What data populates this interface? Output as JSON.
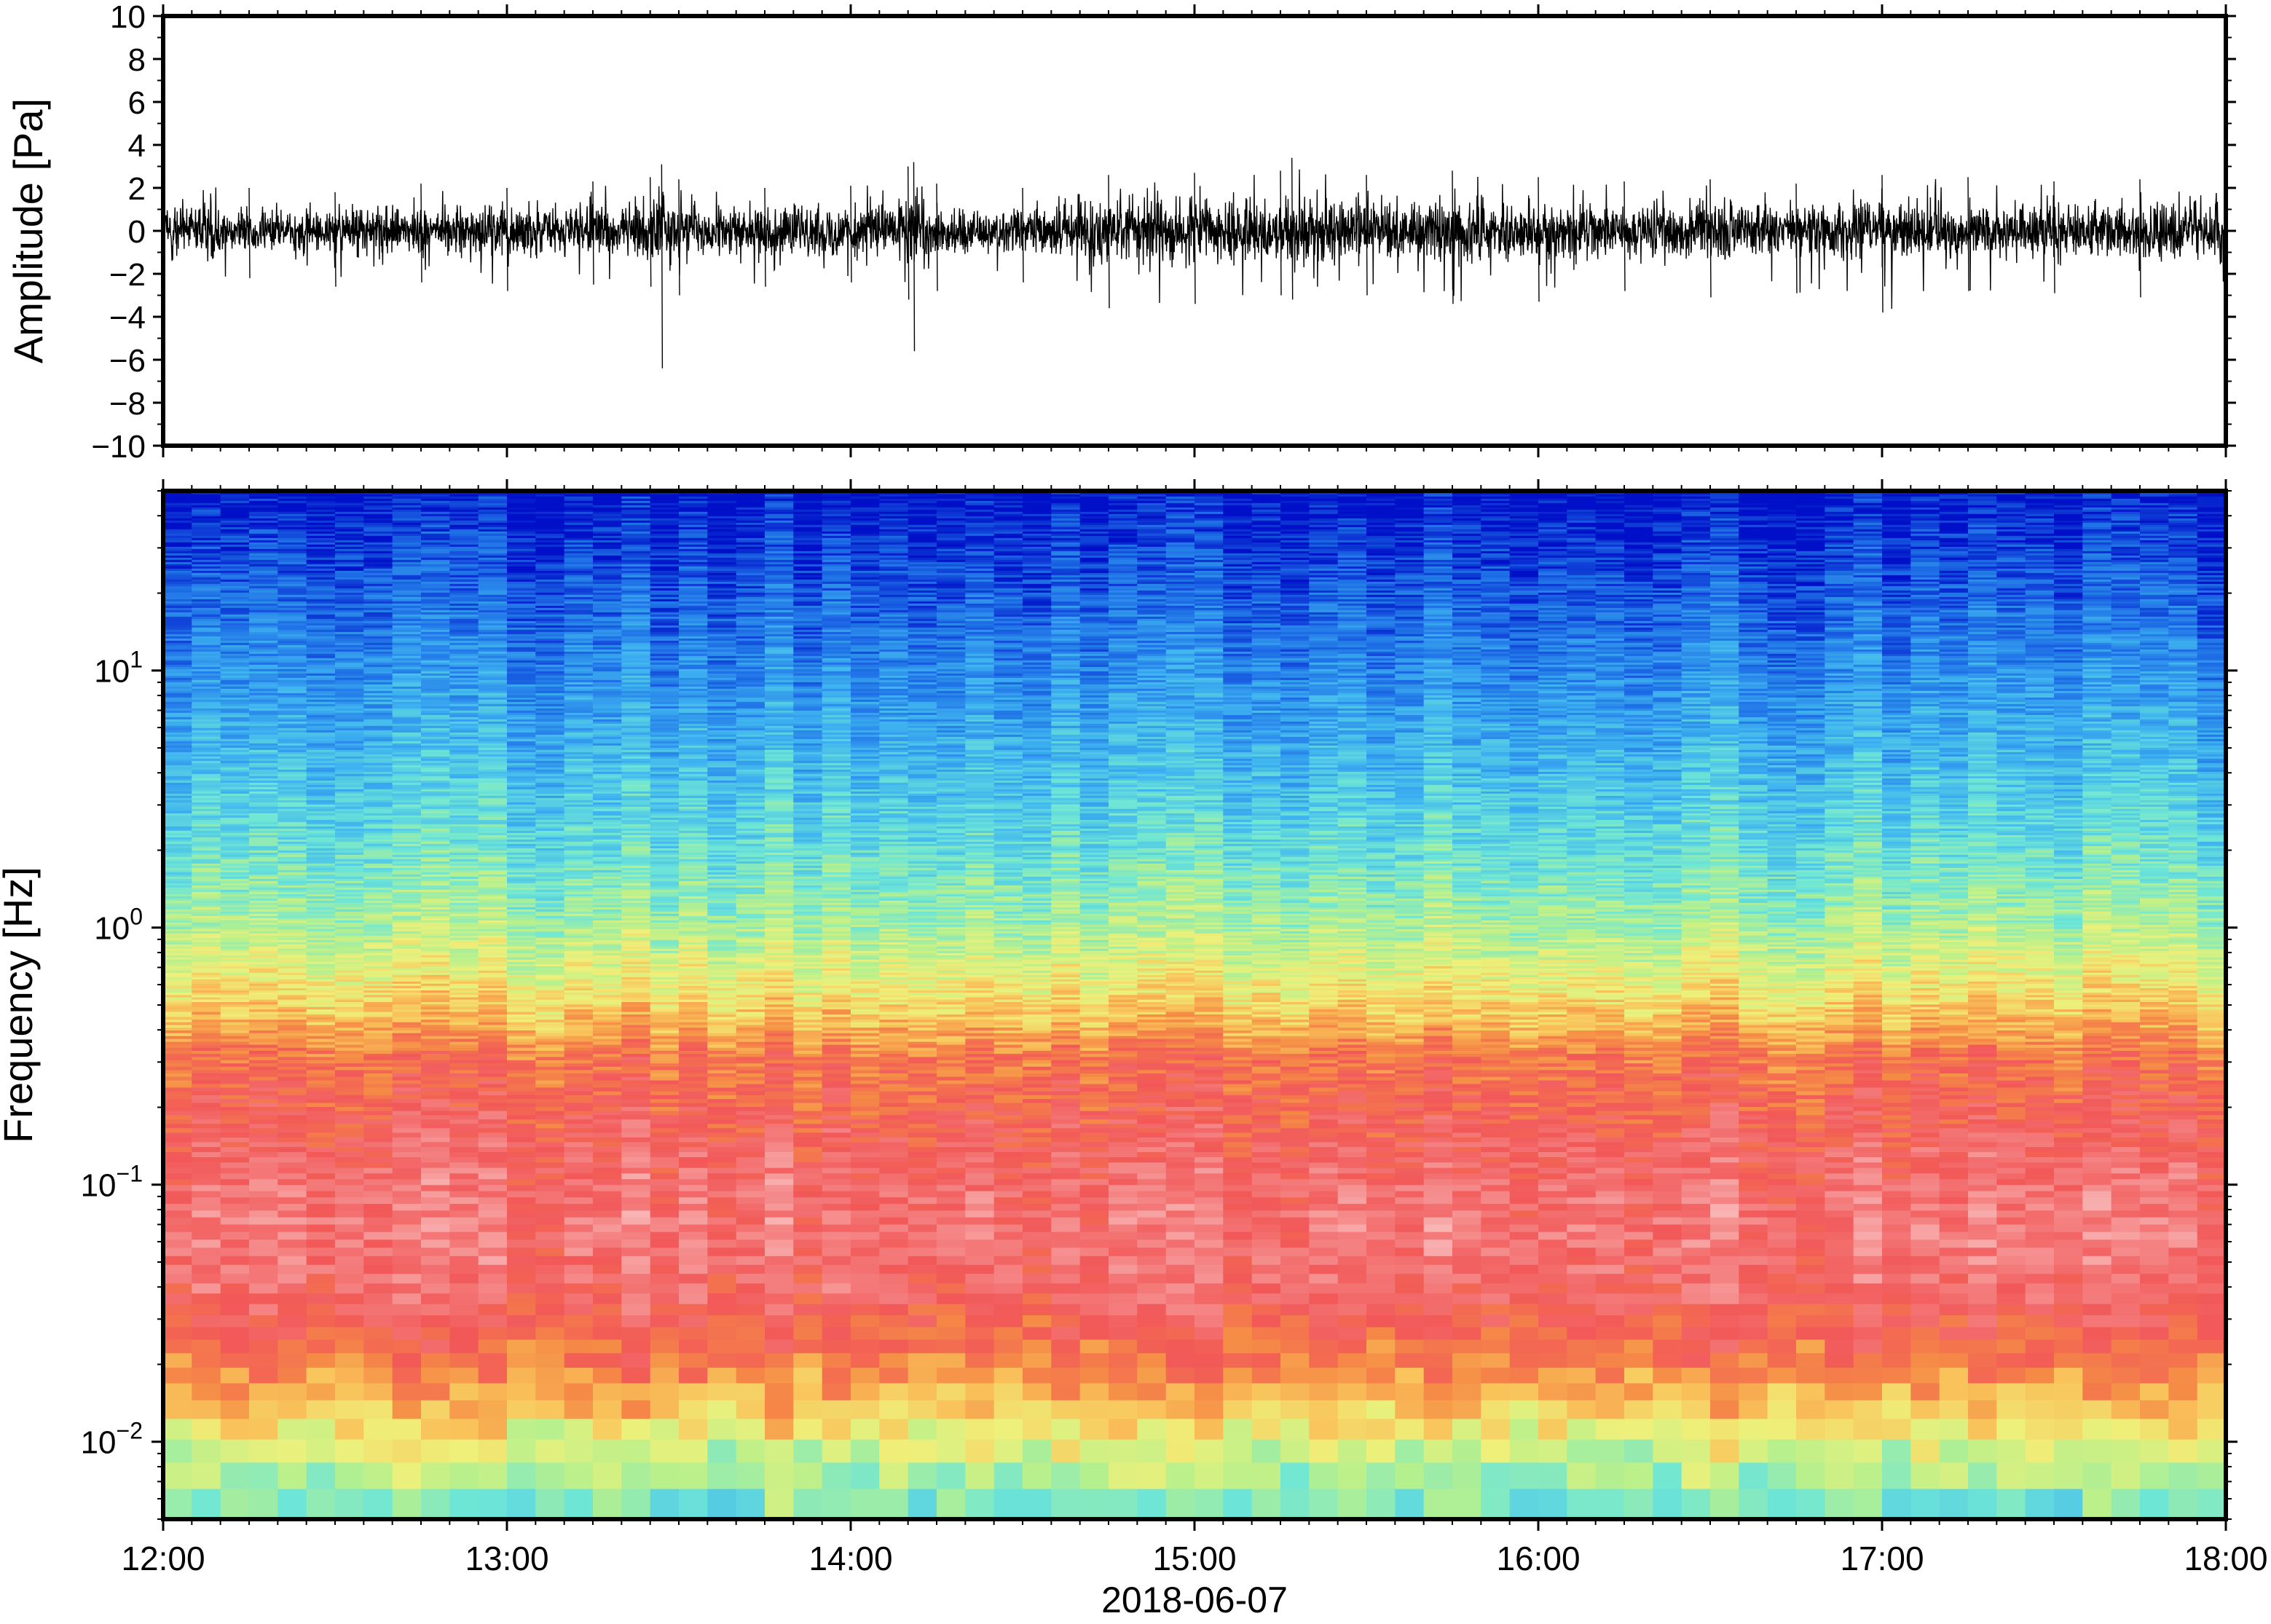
{
  "chart_data": [
    {
      "type": "line",
      "ylabel": "Amplitude [Pa]",
      "ylim": [
        -10,
        10
      ],
      "yticks": [
        -10,
        -8,
        -6,
        -4,
        -2,
        0,
        2,
        4,
        6,
        8,
        10
      ],
      "ytick_labels": [
        "−10",
        "−8",
        "−6",
        "−4",
        "−2",
        "0",
        "2",
        "4",
        "6",
        "8",
        "10"
      ],
      "xlim": [
        "2018-06-07 12:00",
        "2018-06-07 18:00"
      ],
      "grid": false,
      "series": [
        {
          "color": "#000000",
          "envelope_x": [
            "12:00",
            "12:15",
            "12:30",
            "12:45",
            "13:00",
            "13:15",
            "13:25",
            "13:27",
            "13:30",
            "13:45",
            "14:00",
            "14:10",
            "14:11",
            "14:15",
            "14:30",
            "14:45",
            "15:00",
            "15:15",
            "15:17",
            "15:30",
            "15:45",
            "16:00",
            "16:15",
            "16:30",
            "16:45",
            "17:00",
            "17:15",
            "17:30",
            "17:45",
            "18:00"
          ],
          "envelope_max": [
            2.5,
            2.0,
            1.8,
            2.2,
            2.0,
            2.3,
            2.5,
            3.1,
            2.4,
            2.0,
            2.1,
            3.0,
            3.2,
            2.2,
            2.0,
            2.6,
            2.7,
            2.8,
            3.4,
            2.6,
            2.8,
            2.5,
            2.3,
            2.4,
            2.2,
            2.6,
            2.5,
            2.3,
            2.4,
            2.2
          ],
          "envelope_min": [
            -2.8,
            -2.2,
            -2.6,
            -2.4,
            -2.8,
            -2.5,
            -2.6,
            -6.4,
            -3.0,
            -2.6,
            -2.4,
            -3.2,
            -5.6,
            -2.8,
            -2.4,
            -3.6,
            -3.4,
            -3.0,
            -3.2,
            -3.0,
            -3.4,
            -3.3,
            -2.8,
            -3.1,
            -2.9,
            -3.8,
            -2.8,
            -2.9,
            -3.1,
            -2.6
          ]
        }
      ]
    },
    {
      "type": "heatmap",
      "ylabel": "Frequency [Hz]",
      "xlabel": "2018-06-07",
      "y_scale": "log",
      "ylim_hz": [
        0.005,
        50
      ],
      "yticks": [
        {
          "value": 0.01,
          "base": "10",
          "exp": "−2"
        },
        {
          "value": 0.1,
          "base": "10",
          "exp": "−1"
        },
        {
          "value": 1,
          "base": "10",
          "exp": "0"
        },
        {
          "value": 10,
          "base": "10",
          "exp": "1"
        }
      ],
      "xticks": [
        "12:00",
        "13:00",
        "14:00",
        "15:00",
        "16:00",
        "17:00",
        "18:00"
      ],
      "xlim": [
        "12:00",
        "18:00"
      ],
      "colormap": "rainbow (blue = low power, light pink = high power)",
      "colormap_stops": [
        {
          "t": 0.0,
          "color": "#0010c8"
        },
        {
          "t": 0.12,
          "color": "#1e6ee6"
        },
        {
          "t": 0.25,
          "color": "#3fb4f0"
        },
        {
          "t": 0.37,
          "color": "#6ee6d6"
        },
        {
          "t": 0.47,
          "color": "#b8f08c"
        },
        {
          "t": 0.56,
          "color": "#eef07a"
        },
        {
          "t": 0.64,
          "color": "#f9c25a"
        },
        {
          "t": 0.72,
          "color": "#f58c46"
        },
        {
          "t": 0.82,
          "color": "#f25858"
        },
        {
          "t": 0.91,
          "color": "#f47c7c"
        },
        {
          "t": 1.0,
          "color": "#f9b4b4"
        }
      ],
      "power_profile_vs_log10_freq": [
        {
          "log10_f": -2.3,
          "level": 0.4
        },
        {
          "log10_f": -2.1,
          "level": 0.5
        },
        {
          "log10_f": -1.9,
          "level": 0.64
        },
        {
          "log10_f": -1.7,
          "level": 0.76
        },
        {
          "log10_f": -1.45,
          "level": 0.86
        },
        {
          "log10_f": -1.2,
          "level": 0.9
        },
        {
          "log10_f": -1.0,
          "level": 0.88
        },
        {
          "log10_f": -0.75,
          "level": 0.82
        },
        {
          "log10_f": -0.5,
          "level": 0.76
        },
        {
          "log10_f": -0.35,
          "level": 0.64
        },
        {
          "log10_f": -0.2,
          "level": 0.56
        },
        {
          "log10_f": 0.0,
          "level": 0.46
        },
        {
          "log10_f": 0.3,
          "level": 0.36
        },
        {
          "log10_f": 0.6,
          "level": 0.28
        },
        {
          "log10_f": 1.0,
          "level": 0.18
        },
        {
          "log10_f": 1.4,
          "level": 0.08
        },
        {
          "log10_f": 1.7,
          "level": 0.0
        }
      ]
    }
  ]
}
